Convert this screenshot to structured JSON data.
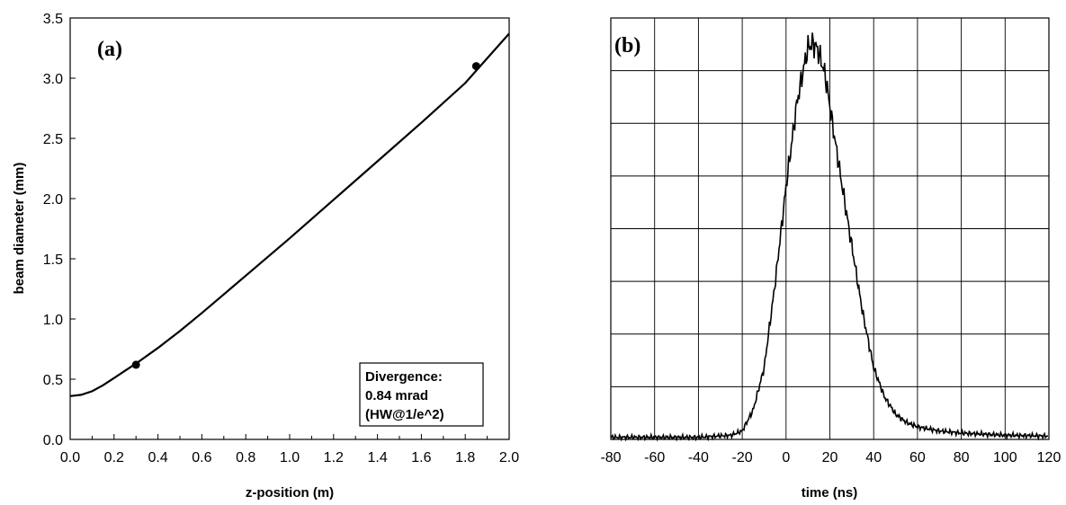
{
  "chart_data": [
    {
      "type": "line",
      "panel_label": "(a)",
      "xlabel": "z-position (m)",
      "ylabel": "beam diameter (mm)",
      "xlim": [
        0,
        2.0
      ],
      "ylim": [
        0,
        3.5
      ],
      "x_ticks": [
        "0.0",
        "0.2",
        "0.4",
        "0.6",
        "0.8",
        "1.0",
        "1.2",
        "1.4",
        "1.6",
        "1.8",
        "2.0"
      ],
      "y_ticks": [
        "0.0",
        "0.5",
        "1.0",
        "1.5",
        "2.0",
        "2.5",
        "3.0",
        "3.5"
      ],
      "grid": false,
      "series": [
        {
          "x": [
            0,
            0.05,
            0.1,
            0.15,
            0.2,
            0.25,
            0.3,
            0.4,
            0.5,
            0.6,
            0.8,
            1.0,
            1.2,
            1.4,
            1.6,
            1.8,
            2.0
          ],
          "y": [
            0.36,
            0.37,
            0.4,
            0.45,
            0.51,
            0.57,
            0.63,
            0.76,
            0.9,
            1.05,
            1.36,
            1.67,
            1.99,
            2.31,
            2.63,
            2.96,
            3.37
          ]
        }
      ],
      "markers": [
        {
          "x": 0.3,
          "y": 0.62
        },
        {
          "x": 1.85,
          "y": 3.1
        }
      ],
      "annotation": [
        "Divergence:",
        "0.84 mrad",
        "(HW@1/e^2)"
      ]
    },
    {
      "type": "line",
      "panel_label": "(b)",
      "xlabel": "time (ns)",
      "ylabel": "",
      "xlim": [
        -80,
        120
      ],
      "ylim": [
        0,
        1
      ],
      "x_ticks": [
        "-80",
        "-60",
        "-40",
        "-20",
        "0",
        "20",
        "40",
        "60",
        "80",
        "100",
        "120"
      ],
      "y_ticks": [],
      "y_gridlines": 8,
      "grid": true,
      "series": [
        {
          "x": [
            -80,
            -60,
            -40,
            -25,
            -20,
            -15,
            -10,
            -5,
            0,
            5,
            8,
            10,
            12,
            14,
            16,
            18,
            20,
            25,
            30,
            35,
            40,
            45,
            50,
            55,
            60,
            70,
            80,
            100,
            120
          ],
          "y": [
            0.005,
            0.005,
            0.005,
            0.01,
            0.02,
            0.07,
            0.17,
            0.37,
            0.6,
            0.8,
            0.88,
            0.93,
            0.94,
            0.93,
            0.9,
            0.86,
            0.79,
            0.62,
            0.46,
            0.3,
            0.17,
            0.1,
            0.06,
            0.04,
            0.03,
            0.02,
            0.015,
            0.01,
            0.008
          ]
        }
      ]
    }
  ]
}
